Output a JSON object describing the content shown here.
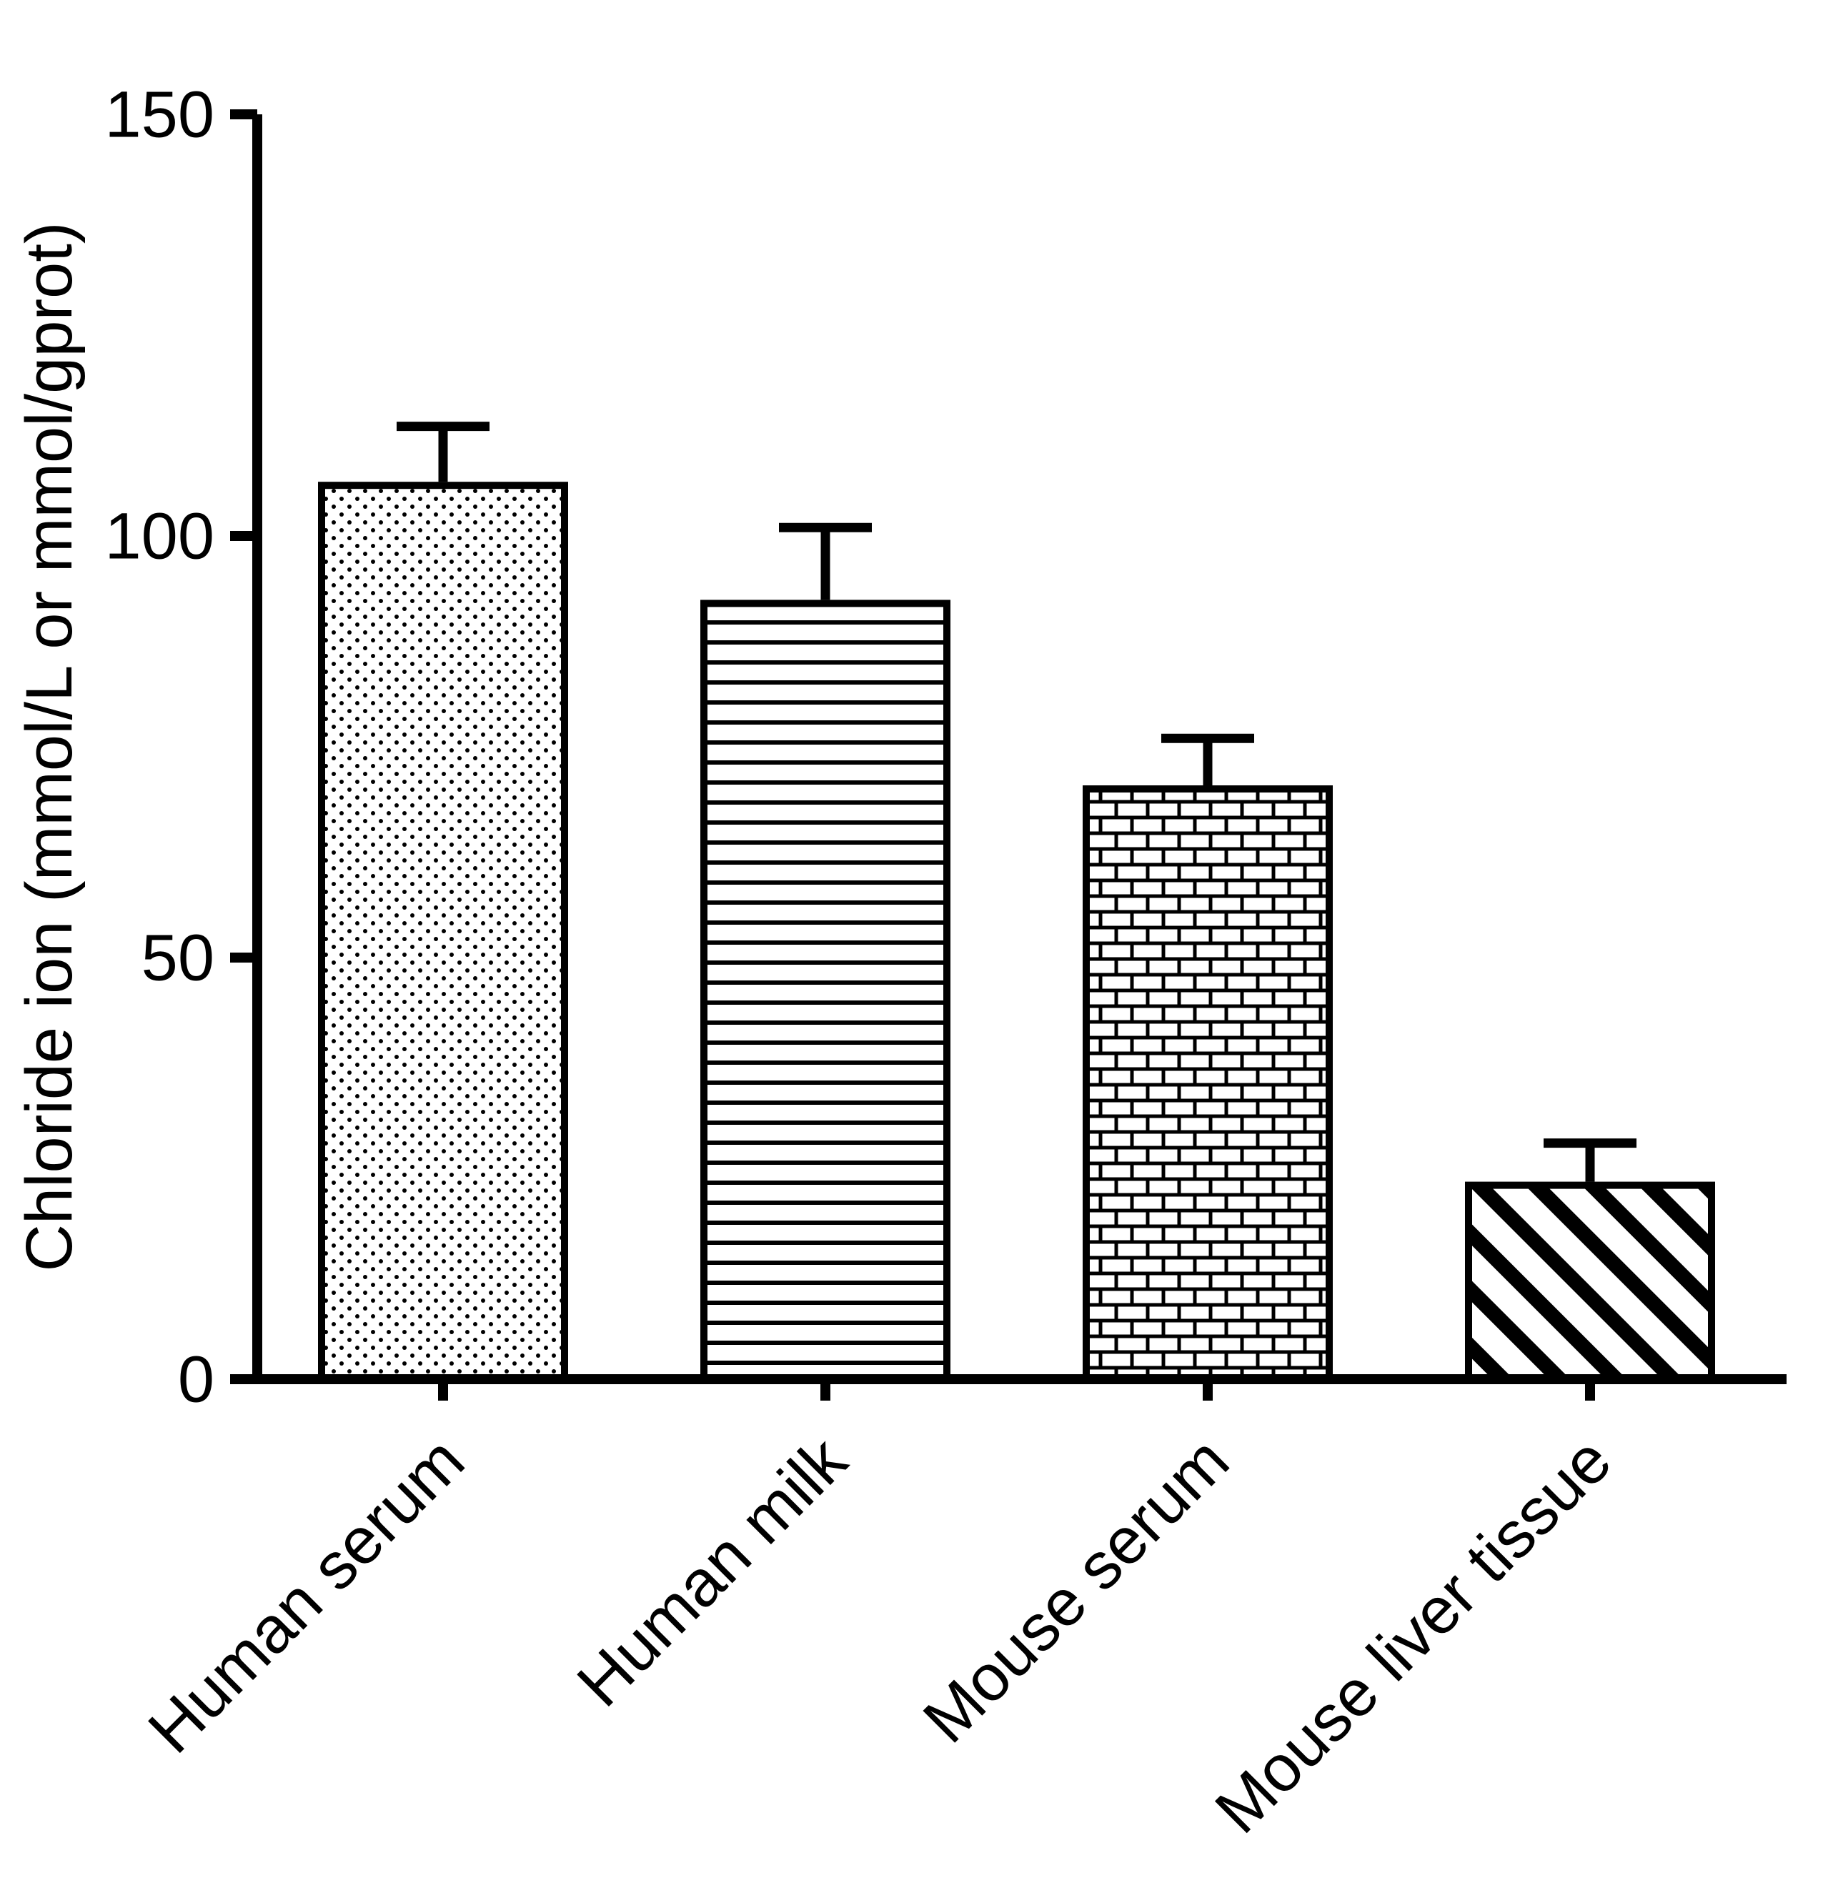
{
  "chart_data": {
    "type": "bar",
    "title": "",
    "xlabel": "",
    "ylabel": "Chloride ion (mmol/L or mmol/gprot)",
    "categories": [
      "Human serum",
      "Human milk",
      "Mouse serum",
      "Mouse liver tissue"
    ],
    "values": [
      106,
      92,
      70,
      23
    ],
    "errors": [
      7,
      9,
      6,
      5
    ],
    "error_type": "upper-sd-only",
    "ylim": [
      0,
      150
    ],
    "yticks": [
      0,
      50,
      100,
      150
    ],
    "bar_patterns": [
      "dots",
      "horizontal-lines",
      "bricks",
      "diagonal-stripes"
    ],
    "grid": false,
    "legend": "none",
    "colors": {
      "foreground": "#000000",
      "background": "#ffffff"
    }
  }
}
